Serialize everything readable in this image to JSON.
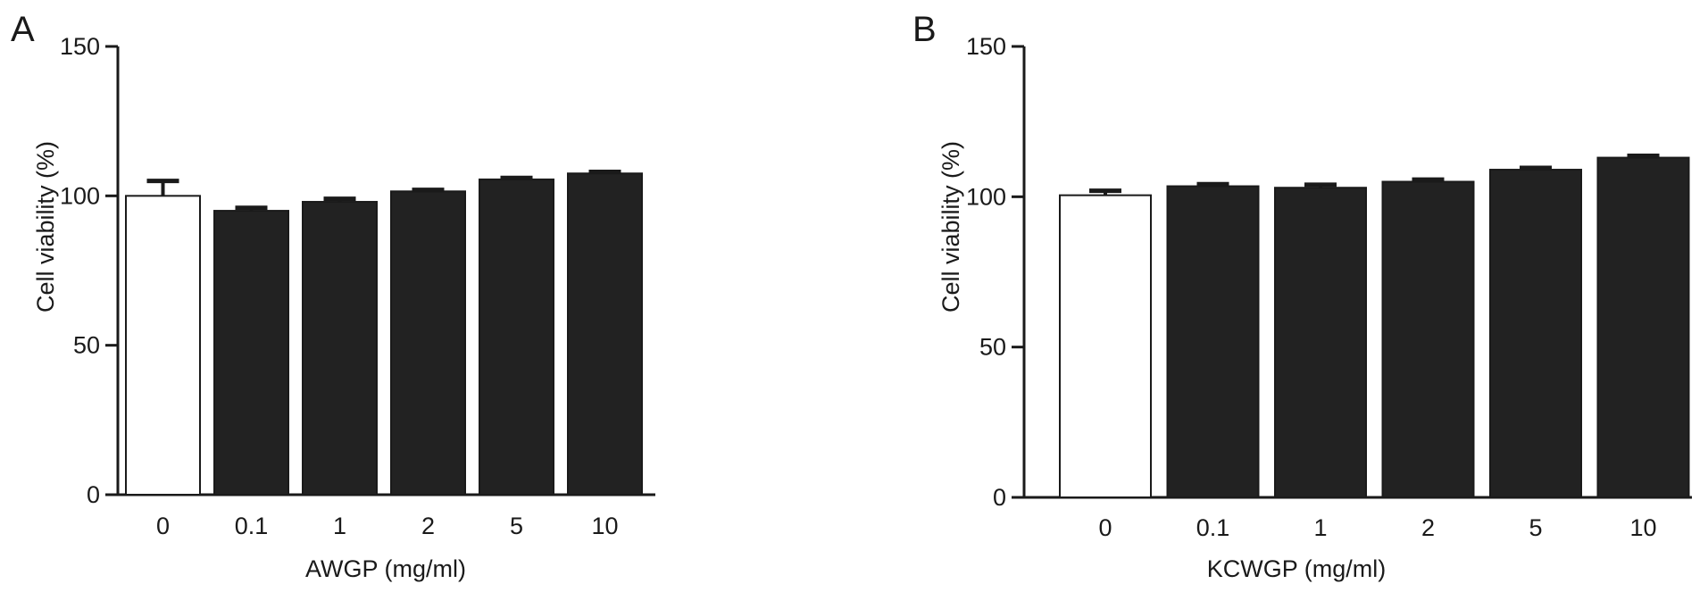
{
  "chart_data": [
    {
      "type": "bar",
      "panel_label": "A",
      "categories": [
        "0",
        "0.1",
        "1",
        "2",
        "5",
        "10"
      ],
      "values": [
        100,
        95,
        98,
        101.5,
        105.5,
        107.5
      ],
      "errors": [
        5,
        1,
        1,
        0.5,
        0.5,
        0.5
      ],
      "bar_colors": [
        "#ffffff",
        "#222222",
        "#222222",
        "#222222",
        "#222222",
        "#222222"
      ],
      "xlabel": "AWGP (mg/ml)",
      "ylabel": "Cell viability (%)",
      "ylim": [
        0,
        150
      ],
      "yticks": [
        "0",
        "50",
        "100",
        "150"
      ],
      "grid": false
    },
    {
      "type": "bar",
      "panel_label": "B",
      "categories": [
        "0",
        "0.1",
        "1",
        "2",
        "5",
        "10"
      ],
      "values": [
        100.5,
        103.5,
        103,
        105,
        109,
        113
      ],
      "errors": [
        1.5,
        0.7,
        1,
        0.7,
        0.6,
        0.6
      ],
      "bar_colors": [
        "#ffffff",
        "#222222",
        "#222222",
        "#222222",
        "#222222",
        "#222222"
      ],
      "xlabel": "KCWGP (mg/ml)",
      "ylabel": "Cell viability (%)",
      "ylim": [
        0,
        150
      ],
      "yticks": [
        "0",
        "50",
        "100",
        "150"
      ],
      "grid": false
    }
  ]
}
